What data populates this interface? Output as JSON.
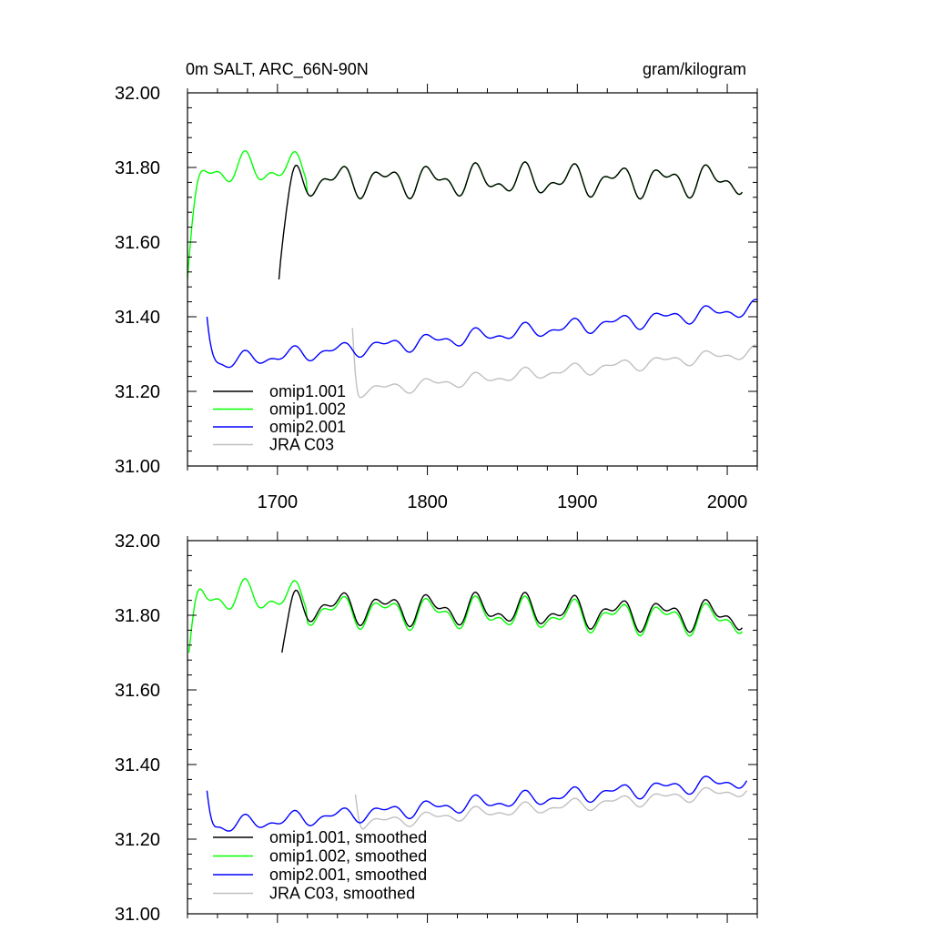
{
  "chart_data": [
    {
      "type": "line",
      "title_left": "0m SALT, ARC_66N-90N",
      "title_right": "gram/kilogram",
      "xlim": [
        1640,
        2020
      ],
      "ylim": [
        31.0,
        32.0
      ],
      "x_ticks": [
        1700,
        1800,
        1900,
        2000
      ],
      "y_ticks": [
        "31.00",
        "31.20",
        "31.40",
        "31.60",
        "31.80",
        "32.00"
      ],
      "legend_position": "bottom-left",
      "series": [
        {
          "name": "omip1.001",
          "color": "#000000",
          "start": 1701,
          "end": 2010,
          "step": 1,
          "spin_end": 1715,
          "start_value": 31.5,
          "base": 31.82,
          "drift": -0.02,
          "cycle_amp": 0.05,
          "noise_amp": 0.035,
          "seed": 11,
          "offset": 0.005
        },
        {
          "name": "omip1.002",
          "color": "#00ff00",
          "start": 1640,
          "end": 2010,
          "step": 1,
          "spin_end": 1655,
          "start_value": 31.5,
          "base": 31.83,
          "drift": -0.02,
          "cycle_amp": 0.05,
          "noise_amp": 0.035,
          "seed": 11,
          "offset": -0.005,
          "lead_in_boost": 0.03
        },
        {
          "name": "omip2.001",
          "color": "#0000ff",
          "start": 1653,
          "end": 2020,
          "step": 1,
          "spin_end": 1662,
          "start_value": 31.4,
          "base": 31.24,
          "drift": 0.1,
          "cycle_amp": 0.025,
          "noise_amp": 0.035,
          "seed": 23,
          "offset": 0.0
        },
        {
          "name": "JRA C03",
          "color": "#c0c0c0",
          "start": 1750,
          "end": 2019,
          "step": 1,
          "spin_end": 1755,
          "start_value": 31.37,
          "base": 31.22,
          "drift": 0.1,
          "cycle_amp": 0.02,
          "noise_amp": 0.03,
          "seed": 37,
          "offset": 0.0
        }
      ]
    },
    {
      "type": "line",
      "title_left": "",
      "title_right": "",
      "xlim": [
        1640,
        2020
      ],
      "ylim": [
        31.0,
        32.0
      ],
      "x_ticks": [],
      "y_ticks": [
        "31.00",
        "31.20",
        "31.40",
        "31.60",
        "31.80",
        "32.00"
      ],
      "legend_position": "bottom-left",
      "series": [
        {
          "name": "omip1.001, smoothed",
          "color": "#000000",
          "start": 1703,
          "end": 2010,
          "step": 1,
          "spin_end": 1715,
          "start_value": 31.7,
          "base": 31.83,
          "drift": -0.03,
          "cycle_amp": 0.05,
          "noise_amp": 0.005,
          "seed": 11,
          "offset": 0.005
        },
        {
          "name": "omip1.002, smoothed",
          "color": "#00ff00",
          "start": 1641,
          "end": 2010,
          "step": 1,
          "spin_end": 1652,
          "start_value": 31.7,
          "base": 31.83,
          "drift": -0.03,
          "cycle_amp": 0.05,
          "noise_amp": 0.005,
          "seed": 11,
          "offset": -0.005,
          "lead_in_boost": 0.03
        },
        {
          "name": "omip2.001, smoothed",
          "color": "#0000ff",
          "start": 1653,
          "end": 2013,
          "step": 1,
          "spin_end": 1660,
          "start_value": 31.33,
          "base": 31.24,
          "drift": 0.1,
          "cycle_amp": 0.025,
          "noise_amp": 0.006,
          "seed": 23,
          "offset": 0.0
        },
        {
          "name": "JRA C03, smoothed",
          "color": "#c0c0c0",
          "start": 1752,
          "end": 2013,
          "step": 1,
          "spin_end": 1758,
          "start_value": 31.32,
          "base": 31.23,
          "drift": 0.1,
          "cycle_amp": 0.02,
          "noise_amp": 0.005,
          "seed": 37,
          "offset": 0.0
        }
      ]
    }
  ]
}
